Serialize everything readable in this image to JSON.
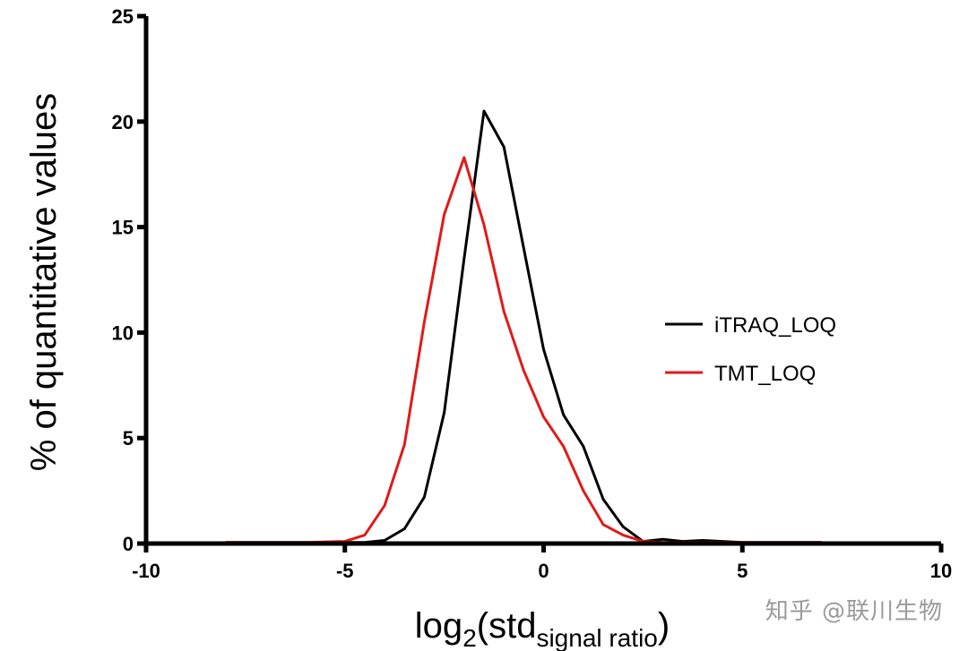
{
  "chart_data": {
    "type": "line",
    "title": "",
    "xlabel_main": "log",
    "xlabel_sub": "2",
    "xlabel_open": "(std",
    "xlabel_sub2": "signal ratio",
    "xlabel_close": ")",
    "ylabel": "% of quantitative values",
    "xlim": [
      -10,
      10
    ],
    "ylim": [
      0,
      25
    ],
    "xticks": [
      -10,
      -5,
      0,
      5,
      10
    ],
    "yticks": [
      0,
      5,
      10,
      15,
      20,
      25
    ],
    "grid": false,
    "legend_position": "right",
    "series": [
      {
        "name": "iTRAQ_LOQ",
        "color": "#000000",
        "x": [
          -8,
          -7,
          -6,
          -5,
          -4.5,
          -4,
          -3.5,
          -3,
          -2.5,
          -2,
          -1.5,
          -1,
          -0.5,
          0,
          0.5,
          1,
          1.5,
          2,
          2.5,
          3,
          3.5,
          4,
          5,
          6,
          7
        ],
        "y": [
          0.05,
          0.05,
          0.05,
          0.05,
          0.05,
          0.15,
          0.7,
          2.2,
          6.2,
          13.5,
          20.5,
          18.8,
          14.0,
          9.2,
          6.1,
          4.6,
          2.1,
          0.8,
          0.1,
          0.2,
          0.1,
          0.15,
          0.05,
          0.05,
          0.05
        ]
      },
      {
        "name": "TMT_LOQ",
        "color": "#e01a1a",
        "x": [
          -8,
          -7,
          -6,
          -5,
          -4.5,
          -4,
          -3.5,
          -3,
          -2.5,
          -2,
          -1.5,
          -1,
          -0.5,
          0,
          0.5,
          1,
          1.5,
          2,
          2.5,
          3,
          3.5,
          4,
          5,
          6,
          7
        ],
        "y": [
          0.05,
          0.05,
          0.05,
          0.1,
          0.4,
          1.8,
          4.7,
          10.5,
          15.6,
          18.3,
          15.1,
          11.0,
          8.2,
          6.0,
          4.6,
          2.5,
          0.9,
          0.4,
          0.1,
          0.05,
          0.05,
          0.05,
          0.05,
          0.05,
          0.05
        ]
      }
    ]
  },
  "watermark": "知乎 @联川生物"
}
